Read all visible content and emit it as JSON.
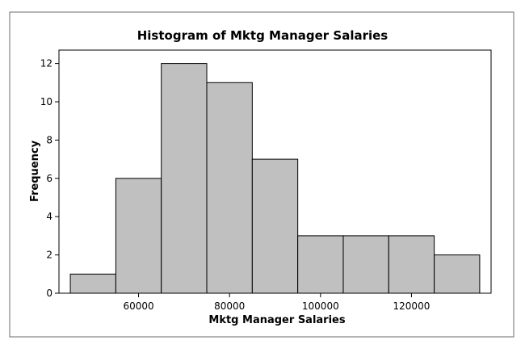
{
  "chart_data": {
    "type": "bar",
    "title": "Histogram of Mktg Manager Salaries",
    "xlabel": "Mktg Manager Salaries",
    "ylabel": "Frequency",
    "bins": [
      {
        "start": 45000,
        "end": 55000,
        "count": 1
      },
      {
        "start": 55000,
        "end": 65000,
        "count": 6
      },
      {
        "start": 65000,
        "end": 75000,
        "count": 12
      },
      {
        "start": 75000,
        "end": 85000,
        "count": 11
      },
      {
        "start": 85000,
        "end": 95000,
        "count": 7
      },
      {
        "start": 95000,
        "end": 105000,
        "count": 3
      },
      {
        "start": 105000,
        "end": 115000,
        "count": 3
      },
      {
        "start": 115000,
        "end": 125000,
        "count": 3
      },
      {
        "start": 125000,
        "end": 135000,
        "count": 2
      }
    ],
    "xlim": [
      42500,
      137500
    ],
    "ylim": [
      0,
      12.7
    ],
    "xticks": [
      60000,
      80000,
      100000,
      120000
    ],
    "yticks": [
      0,
      2,
      4,
      6,
      8,
      10,
      12
    ],
    "bar_color": "#c0c0c0",
    "bar_edge_color": "#000000",
    "grid": false
  }
}
